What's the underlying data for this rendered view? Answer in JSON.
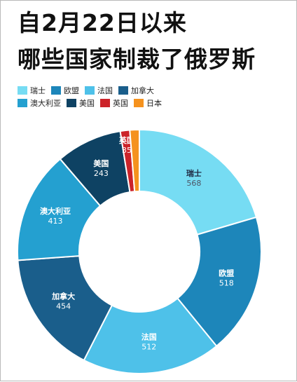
{
  "title": {
    "line1": "自2月22日以来",
    "line2": "哪些国家制裁了俄罗斯"
  },
  "legend": {
    "row1": [
      {
        "label": "瑞士",
        "color": "#76dcf3"
      },
      {
        "label": "欧盟",
        "color": "#1d86ba"
      },
      {
        "label": "法国",
        "color": "#4ec1e9"
      },
      {
        "label": "加拿大",
        "color": "#1a5e8b"
      }
    ],
    "row2": [
      {
        "label": "澳大利亚",
        "color": "#24a0d0"
      },
      {
        "label": "美国",
        "color": "#0e4263"
      },
      {
        "label": "英国",
        "color": "#cc2329"
      },
      {
        "label": "日本",
        "color": "#f5921e"
      }
    ]
  },
  "chart_data": {
    "type": "pie",
    "subtype": "donut",
    "categories": [
      "瑞士",
      "欧盟",
      "法国",
      "加拿大",
      "澳大利亚",
      "美国",
      "英国",
      "日本"
    ],
    "values": [
      568,
      518,
      512,
      454,
      413,
      243,
      35,
      35
    ],
    "colors": [
      "#76dcf3",
      "#1d86ba",
      "#4ec1e9",
      "#1a5e8b",
      "#24a0d0",
      "#0e4263",
      "#cc2329",
      "#f5921e"
    ],
    "shown_labels": [
      {
        "name": "瑞士",
        "value": "568"
      },
      {
        "name": "欧盟",
        "value": "518"
      },
      {
        "name": "法国",
        "value": "512"
      },
      {
        "name": "加拿大",
        "value": "454"
      },
      {
        "name": "澳大利亚",
        "value": "413"
      },
      {
        "name": "美国",
        "value": "243"
      },
      {
        "name": "英国",
        "value": "35"
      }
    ],
    "legend_position": "top-left"
  }
}
